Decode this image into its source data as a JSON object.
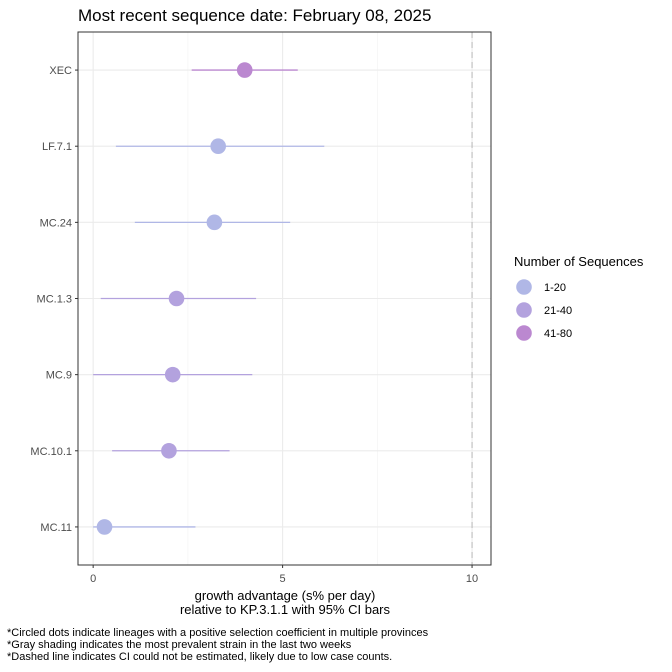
{
  "chart_data": {
    "type": "scatter",
    "title": "Most recent sequence date: February 08, 2025",
    "xlabel_lines": [
      "growth advantage (s% per day)",
      "relative to  KP.3.1.1  with 95% CI bars"
    ],
    "ylabel": "",
    "xlim": [
      -0.4,
      10.5
    ],
    "xticks": [
      0,
      5,
      10
    ],
    "grid": true,
    "reference_line": {
      "x": 10,
      "style": "dashed"
    },
    "categories": [
      "XEC",
      "LF.7.1",
      "MC.24",
      "MC.1.3",
      "MC.9",
      "MC.10.1",
      "MC.11"
    ],
    "points": [
      {
        "lineage": "XEC",
        "estimate": 4.0,
        "ci_low": 2.6,
        "ci_high": 5.4,
        "group": "41-80"
      },
      {
        "lineage": "LF.7.1",
        "estimate": 3.3,
        "ci_low": 0.6,
        "ci_high": 6.1,
        "group": "1-20"
      },
      {
        "lineage": "MC.24",
        "estimate": 3.2,
        "ci_low": 1.1,
        "ci_high": 5.2,
        "group": "1-20"
      },
      {
        "lineage": "MC.1.3",
        "estimate": 2.2,
        "ci_low": 0.2,
        "ci_high": 4.3,
        "group": "21-40"
      },
      {
        "lineage": "MC.9",
        "estimate": 2.1,
        "ci_low": 0.0,
        "ci_high": 4.2,
        "group": "21-40"
      },
      {
        "lineage": "MC.10.1",
        "estimate": 2.0,
        "ci_low": 0.5,
        "ci_high": 3.6,
        "group": "21-40"
      },
      {
        "lineage": "MC.11",
        "estimate": 0.3,
        "ci_low": 0.0,
        "ci_high": 2.7,
        "group": "1-20"
      }
    ],
    "legend": {
      "title": "Number of Sequences",
      "placement": "right",
      "items": [
        {
          "label": "1-20",
          "color": "#b0b7e6"
        },
        {
          "label": "21-40",
          "color": "#b3a2de"
        },
        {
          "label": "41-80",
          "color": "#bb88d0"
        }
      ]
    },
    "footnotes": [
      "*Circled dots indicate lineages with a positive selection coefficient in multiple provinces",
      "*Gray shading indicates the most prevalent strain in the last two weeks",
      "*Dashed line indicates CI could not be estimated, likely due to low case counts."
    ]
  }
}
